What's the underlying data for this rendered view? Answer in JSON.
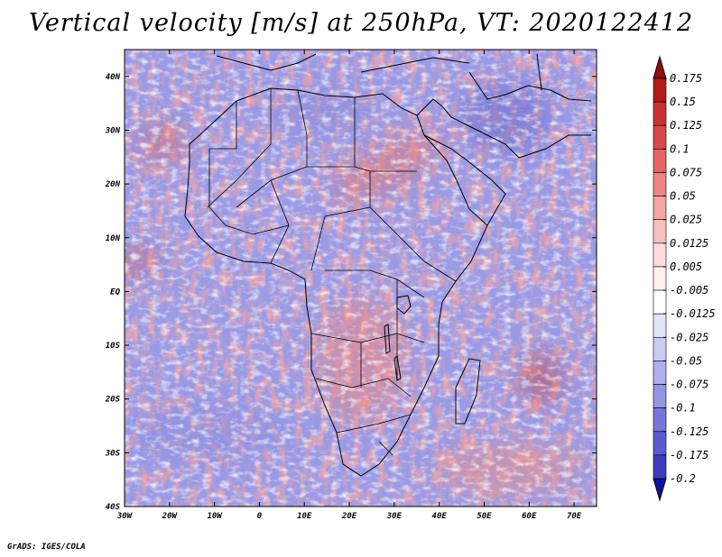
{
  "title": "Vertical velocity [m/s] at 250hPa, VT: 2020122412",
  "credit": "GrADS: IGES/COLA",
  "map": {
    "region": "Africa and surrounding oceans",
    "projection": "latitude-longitude",
    "lon_range": [
      -30,
      75
    ],
    "lat_range": [
      -40,
      45
    ],
    "lat_labels": [
      {
        "value": 40,
        "label": "40N"
      },
      {
        "value": 30,
        "label": "30N"
      },
      {
        "value": 20,
        "label": "20N"
      },
      {
        "value": 10,
        "label": "10N"
      },
      {
        "value": 0,
        "label": "EQ"
      },
      {
        "value": -10,
        "label": "10S"
      },
      {
        "value": -20,
        "label": "20S"
      },
      {
        "value": -30,
        "label": "30S"
      },
      {
        "value": -40,
        "label": "40S"
      }
    ],
    "lon_labels": [
      {
        "value": -30,
        "label": "30W"
      },
      {
        "value": -20,
        "label": "20W"
      },
      {
        "value": -10,
        "label": "10W"
      },
      {
        "value": 0,
        "label": "0"
      },
      {
        "value": 10,
        "label": "10E"
      },
      {
        "value": 20,
        "label": "20E"
      },
      {
        "value": 30,
        "label": "30E"
      },
      {
        "value": 40,
        "label": "40E"
      },
      {
        "value": 50,
        "label": "50E"
      },
      {
        "value": 60,
        "label": "60E"
      },
      {
        "value": 70,
        "label": "70E"
      }
    ]
  },
  "colorbar": {
    "levels": [
      {
        "label": "0.175",
        "color": "#b41a1a"
      },
      {
        "label": "0.15",
        "color": "#c83232"
      },
      {
        "label": "0.125",
        "color": "#d84848"
      },
      {
        "label": "0.1",
        "color": "#e46464"
      },
      {
        "label": "0.075",
        "color": "#ee8484"
      },
      {
        "label": "0.05",
        "color": "#f4a4a4"
      },
      {
        "label": "0.025",
        "color": "#f8c0c0"
      },
      {
        "label": "0.0125",
        "color": "#fcdcdc"
      },
      {
        "label": "0.005",
        "color": "#fff0f0"
      },
      {
        "label": "-0.005",
        "color": "#ffffff"
      },
      {
        "label": "-0.0125",
        "color": "#e4e4fa"
      },
      {
        "label": "-0.025",
        "color": "#ccccf4"
      },
      {
        "label": "-0.05",
        "color": "#b0b0ee"
      },
      {
        "label": "-0.075",
        "color": "#9494e6"
      },
      {
        "label": "-0.1",
        "color": "#7676dc"
      },
      {
        "label": "-0.125",
        "color": "#5a5ad0"
      },
      {
        "label": "-0.175",
        "color": "#3c3cc0"
      },
      {
        "label": "-0.2",
        "color": "#2424a8"
      }
    ],
    "top_color": "#8c1010",
    "bottom_color": "#1010a0"
  }
}
